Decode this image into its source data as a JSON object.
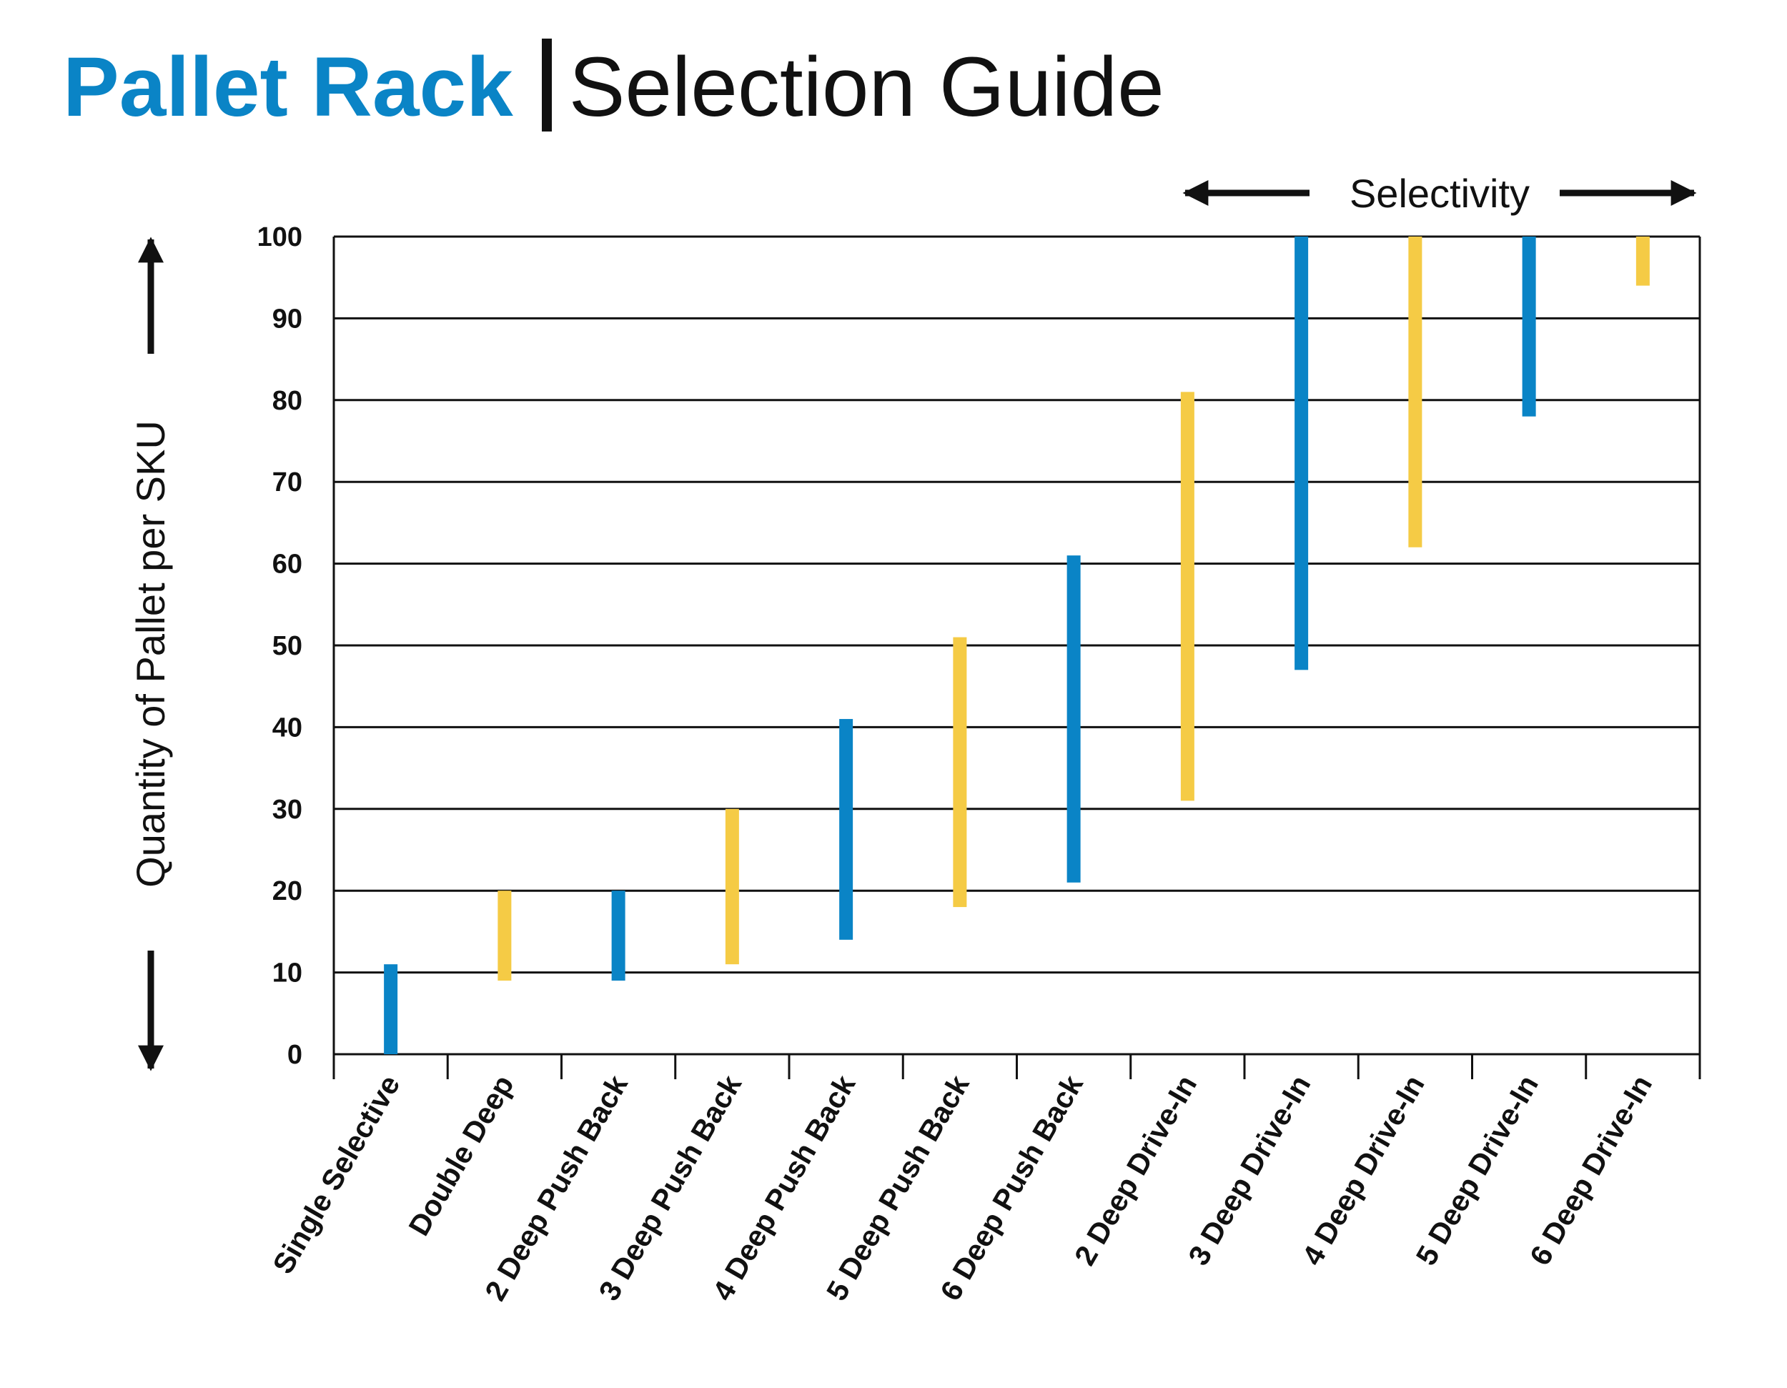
{
  "title": {
    "main": "Pallet Rack",
    "sub": "Selection Guide"
  },
  "colors": {
    "blue": "#0a84c6",
    "yellow": "#f5cb45",
    "text": "#111111"
  },
  "chart_data": {
    "type": "bar",
    "subtype": "floating-range",
    "title": "Pallet Rack | Selection Guide",
    "ylabel": "Quantity of Pallet per SKU",
    "top_annotation": "Selectivity",
    "ylim": [
      0,
      100
    ],
    "yticks": [
      0,
      10,
      20,
      30,
      40,
      50,
      60,
      70,
      80,
      90,
      100
    ],
    "grid": true,
    "categories": [
      "Single Selective",
      "Double Deep",
      "2 Deep Push Back",
      "3 Deep Push Back",
      "4 Deep Push Back",
      "5 Deep Push Back",
      "6 Deep Push Back",
      "2 Deep Drive-In",
      "3 Deep Drive-In",
      "4 Deep Drive-In",
      "5 Deep Drive-In",
      "6 Deep Drive-In"
    ],
    "ranges": [
      {
        "low": 0,
        "high": 11,
        "color": "blue"
      },
      {
        "low": 9,
        "high": 20,
        "color": "yellow"
      },
      {
        "low": 9,
        "high": 20,
        "color": "blue"
      },
      {
        "low": 11,
        "high": 30,
        "color": "yellow"
      },
      {
        "low": 14,
        "high": 41,
        "color": "blue"
      },
      {
        "low": 18,
        "high": 51,
        "color": "yellow"
      },
      {
        "low": 21,
        "high": 61,
        "color": "blue"
      },
      {
        "low": 31,
        "high": 81,
        "color": "yellow"
      },
      {
        "low": 47,
        "high": 100,
        "color": "blue"
      },
      {
        "low": 62,
        "high": 100,
        "color": "yellow"
      },
      {
        "low": 78,
        "high": 100,
        "color": "blue"
      },
      {
        "low": 94,
        "high": 100,
        "color": "yellow"
      }
    ]
  }
}
